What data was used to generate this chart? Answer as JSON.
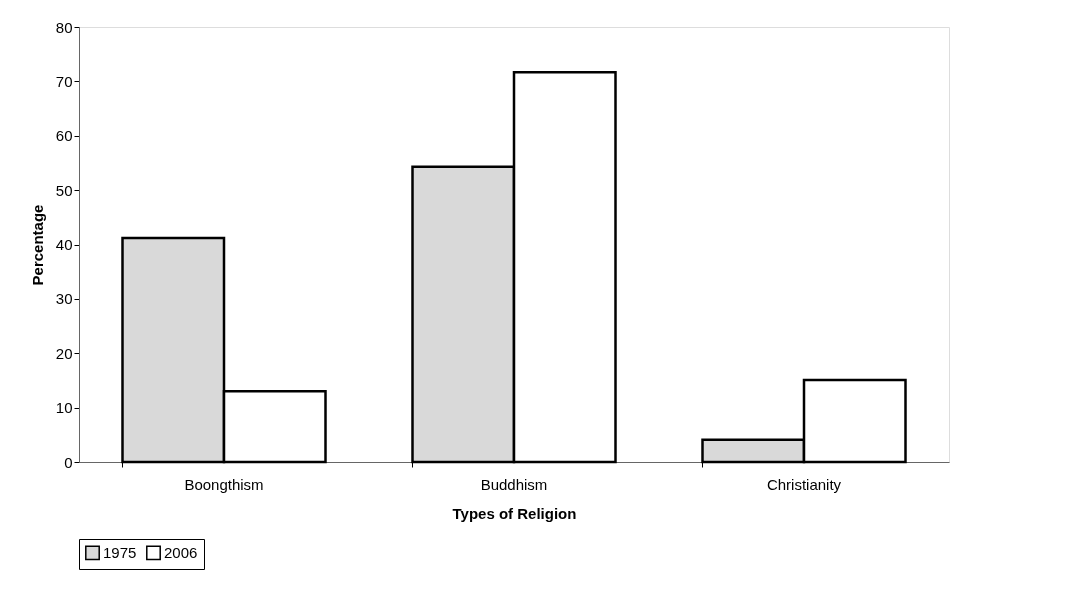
{
  "chart_data": {
    "type": "bar",
    "xlabel": "Types of Religion",
    "ylabel": "Percentage",
    "categories": [
      "Boongthism",
      "Buddhism",
      "Christianity"
    ],
    "series": [
      {
        "name": "1975",
        "color": "#d9d9d9",
        "values": [
          41.2,
          54.3,
          4.1
        ]
      },
      {
        "name": "2006",
        "color": "#ffffff",
        "values": [
          13.0,
          71.7,
          15.1
        ]
      }
    ],
    "ylim": [
      0,
      80
    ],
    "yticks": [
      0,
      10,
      20,
      30,
      40,
      50,
      60,
      70,
      80
    ],
    "grid": false,
    "legend": "bottom"
  }
}
